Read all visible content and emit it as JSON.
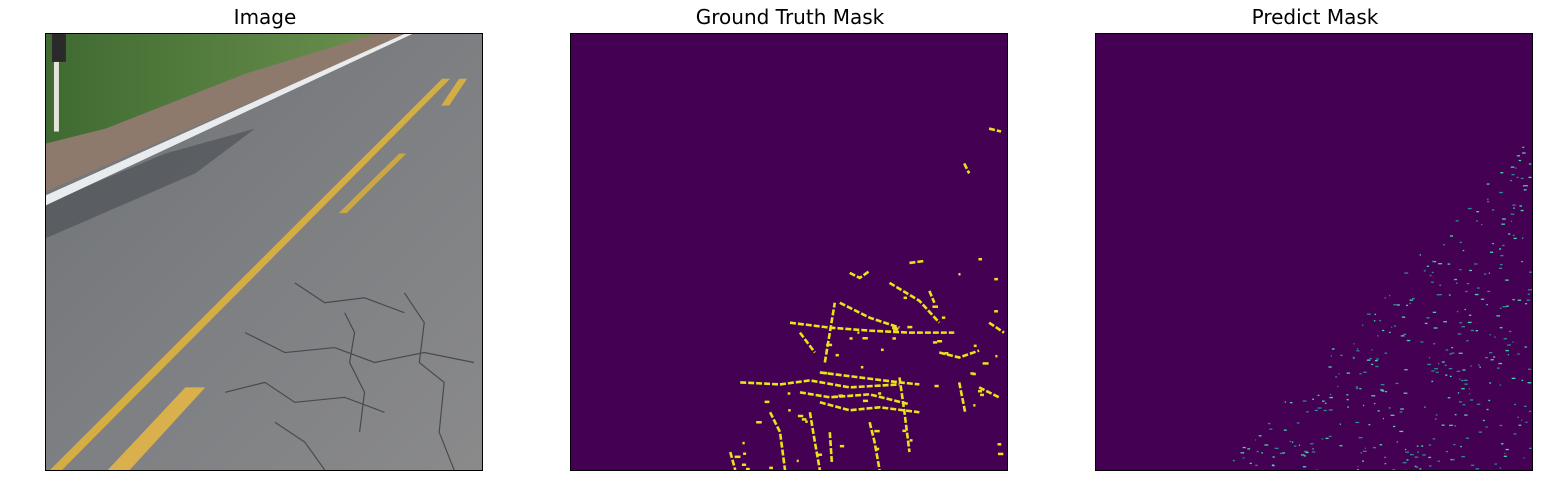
{
  "panels": [
    {
      "title": "Image"
    },
    {
      "title": "Ground Truth Mask"
    },
    {
      "title": "Predict Mask"
    }
  ],
  "colors": {
    "mask_background": "#440154",
    "gt_crack": "#e8e419",
    "pred_crack_bright": "#48d3a6",
    "pred_crack_dim": "#2c8a8e",
    "asphalt": "#7a7c7f",
    "grass": "#4e7a3c",
    "lane_yellow": "#d4ad45"
  },
  "icons": [
    "road-photo",
    "crack-mask-gt",
    "crack-mask-pred"
  ]
}
